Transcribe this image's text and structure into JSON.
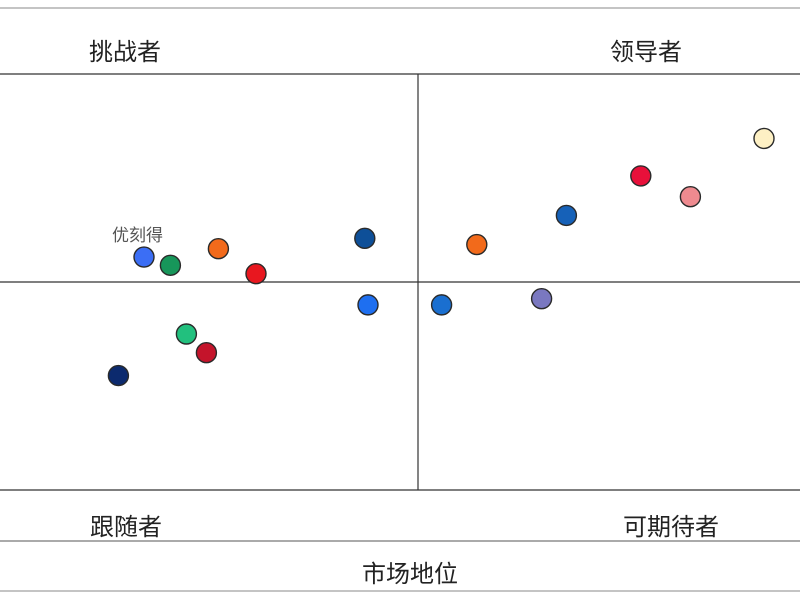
{
  "chart_data": {
    "type": "scatter",
    "quadrants": {
      "top_left": "挑战者",
      "top_right": "领导者",
      "bottom_left": "跟随者",
      "bottom_right": "可期待者"
    },
    "xlabel": "市场地位",
    "ylabel": "",
    "xlim": [
      0,
      100
    ],
    "ylim": [
      0,
      100
    ],
    "points": [
      {
        "x": 18.0,
        "y": 56.0,
        "color": "#3b6ef5",
        "label": "优刻得"
      },
      {
        "x": 21.3,
        "y": 54.0,
        "color": "#17965a",
        "label": ""
      },
      {
        "x": 27.3,
        "y": 58.0,
        "color": "#f26a1b",
        "label": ""
      },
      {
        "x": 32.0,
        "y": 52.0,
        "color": "#e8171f",
        "label": ""
      },
      {
        "x": 45.6,
        "y": 60.5,
        "color": "#0e4f98",
        "label": ""
      },
      {
        "x": 46.0,
        "y": 44.5,
        "color": "#1e6ff0",
        "label": ""
      },
      {
        "x": 23.3,
        "y": 37.5,
        "color": "#22c07e",
        "label": ""
      },
      {
        "x": 25.8,
        "y": 33.0,
        "color": "#c4142b",
        "label": ""
      },
      {
        "x": 14.8,
        "y": 27.5,
        "color": "#0c2a6e",
        "label": ""
      },
      {
        "x": 55.2,
        "y": 44.5,
        "color": "#1a6fd0",
        "label": ""
      },
      {
        "x": 59.6,
        "y": 59.0,
        "color": "#f26a1b",
        "label": ""
      },
      {
        "x": 67.7,
        "y": 46.0,
        "color": "#7a78c0",
        "label": ""
      },
      {
        "x": 70.8,
        "y": 66.0,
        "color": "#1661b8",
        "label": ""
      },
      {
        "x": 80.1,
        "y": 75.5,
        "color": "#e8103a",
        "label": ""
      },
      {
        "x": 86.3,
        "y": 70.5,
        "color": "#ee8a8f",
        "label": ""
      },
      {
        "x": 95.5,
        "y": 84.5,
        "color": "#fdf0c4",
        "label": ""
      }
    ],
    "grid": false,
    "legend": "none"
  }
}
